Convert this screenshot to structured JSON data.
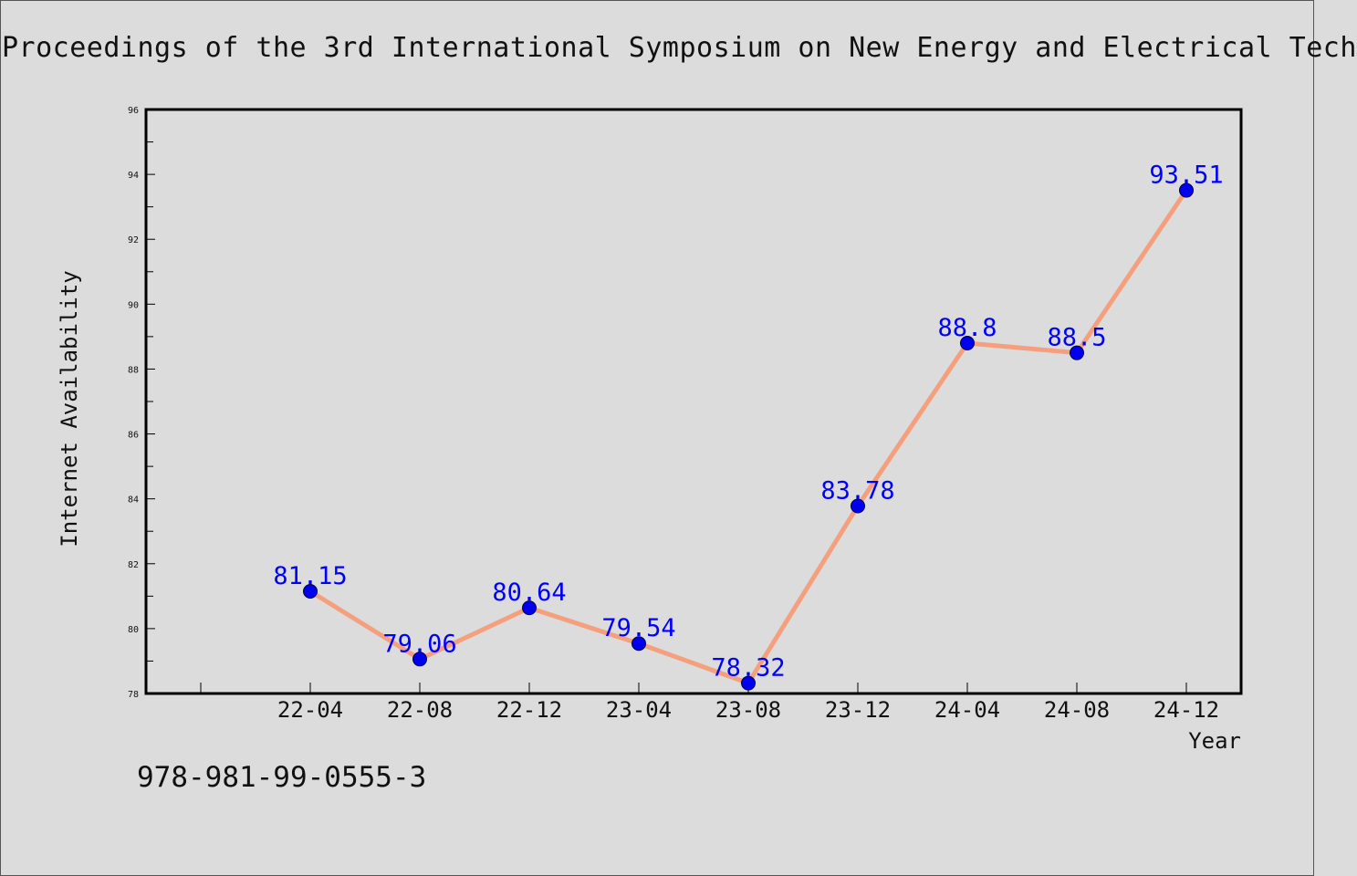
{
  "page": {
    "title": "Proceedings of the 3rd International Symposium on New Energy and Electrical Tech",
    "isbn": "978-981-99-0555-3"
  },
  "colors": {
    "background": "#dcdcdc",
    "line": "#f4a07e",
    "marker": "#0000ee",
    "label": "#0000ff",
    "axis": "#000000"
  },
  "chart_data": {
    "type": "line",
    "title": "",
    "xlabel": "Year",
    "ylabel": "Internet Availability",
    "categories": [
      "22-04",
      "22-08",
      "22-12",
      "23-04",
      "23-08",
      "23-12",
      "24-04",
      "24-08",
      "24-12"
    ],
    "series": [
      {
        "values": [
          81.15,
          79.06,
          80.64,
          79.54,
          78.32,
          83.78,
          88.8,
          88.5,
          93.51
        ]
      }
    ],
    "data_labels": [
      "81.15",
      "79.06",
      "80.64",
      "79.54",
      "78.32",
      "83.78",
      "88.8",
      "88.5",
      "93.51"
    ],
    "ylim": [
      78,
      96
    ],
    "yticks": [
      78,
      80,
      82,
      84,
      86,
      88,
      90,
      92,
      94,
      96
    ],
    "grid": false,
    "legend": "none"
  }
}
